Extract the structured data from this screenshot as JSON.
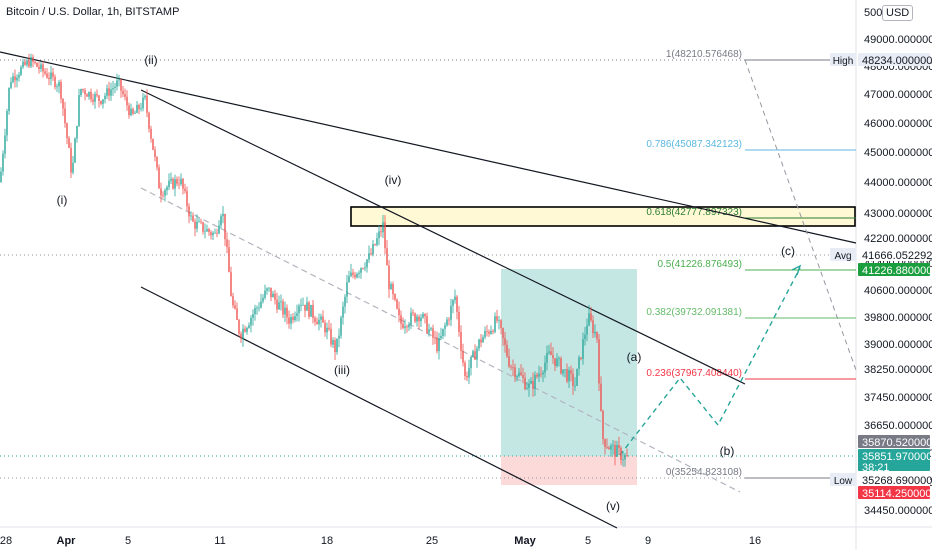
{
  "header": {
    "title": "Bitcoin / U.S. Dollar, 1h, BITSTAMP",
    "currency": "USD"
  },
  "colors": {
    "bull": "#26a69a",
    "bear": "#ef5350",
    "fib_0786": "#5bb8e0",
    "fib_0618": "#2e7d32",
    "fib_05": "#4caf50",
    "fib_0382": "#66bb6a",
    "fib_0236": "#f23645",
    "fib_0": "#787b86",
    "fib_1": "#787b86",
    "box_yellow": "#fff9d6",
    "profit_box": "#b2dfdb",
    "loss_box": "#fcd6d6"
  },
  "chart_data": {
    "type": "candlestick",
    "symbol": "Bitcoin / U.S. Dollar",
    "interval": "1h",
    "exchange": "BITSTAMP",
    "price_axis": {
      "ticks": [
        "50000.000000",
        "49000.000000",
        "48000.000000",
        "47000.000000",
        "46000.000000",
        "45000.000000",
        "44000.000000",
        "43000.000000",
        "42200.000000",
        "41400.000000",
        "40600.000000",
        "39800.000000",
        "39000.000000",
        "38250.000000",
        "37450.000000",
        "36650.000000",
        "35850.000000",
        "35050.000000",
        "34450.000000"
      ]
    },
    "time_axis": {
      "ticks": [
        "28",
        "Apr",
        "5",
        "11",
        "18",
        "25",
        "May",
        "5",
        "9",
        "16"
      ]
    },
    "price_badges": [
      {
        "label": "High",
        "value": "48234.000000"
      },
      {
        "label": "Avg",
        "value": "41666.052292"
      },
      {
        "label": "",
        "value": "41226.880000"
      },
      {
        "label": "",
        "value": "35870.520000"
      },
      {
        "label": "",
        "value": "35851.970000",
        "sub": "38:21"
      },
      {
        "label": "Low",
        "value": "35268.690000"
      },
      {
        "label": "",
        "value": "35114.250000"
      }
    ],
    "fibonacci": [
      {
        "ratio": "1",
        "price": "48210.576468",
        "text": "1(48210.576468)"
      },
      {
        "ratio": "0.786",
        "price": "45087.342123",
        "text": "0.786(45087.342123)"
      },
      {
        "ratio": "0.618",
        "price": "42777.897323",
        "text": "0.618(42777.897323)"
      },
      {
        "ratio": "0.5",
        "price": "41226.876493",
        "text": "0.5(41226.876493)"
      },
      {
        "ratio": "0.382",
        "price": "39732.091381",
        "text": "0.382(39732.091381)"
      },
      {
        "ratio": "0.236",
        "price": "37967.408440",
        "text": "0.236(37967.408440)"
      },
      {
        "ratio": "0",
        "price": "35254.823108",
        "text": "0(35254.823108)"
      }
    ],
    "wave_labels": [
      "(i)",
      "(ii)",
      "(iii)",
      "(iv)",
      "(v)",
      "(a)",
      "(b)",
      "(c)"
    ]
  }
}
